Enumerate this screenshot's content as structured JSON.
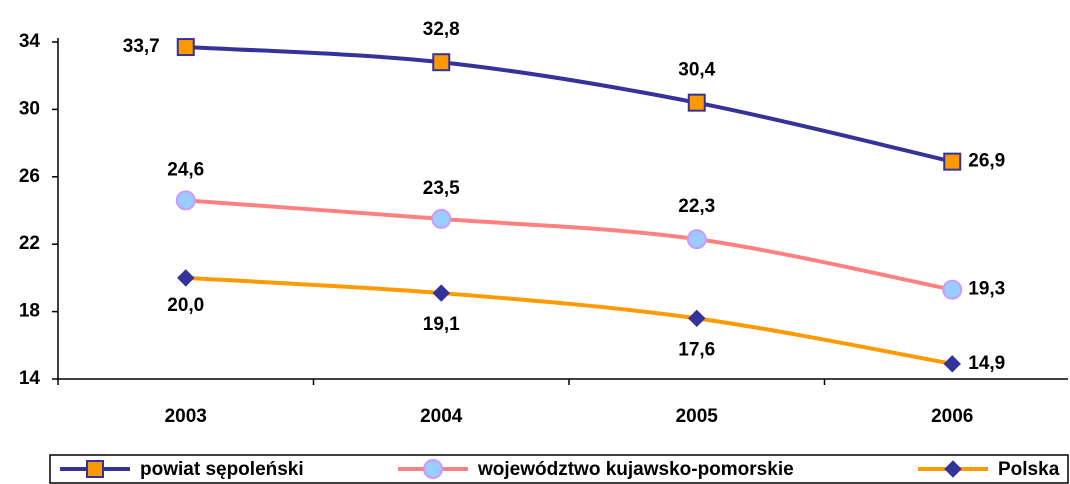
{
  "chart_data": {
    "type": "line",
    "categories": [
      "2003",
      "2004",
      "2005",
      "2006"
    ],
    "series": [
      {
        "name": "powiat sępoleński",
        "color": "#333399",
        "marker": "square",
        "marker_color": "#ff9900",
        "values": [
          33.7,
          32.8,
          30.4,
          26.9
        ],
        "value_labels": [
          "33,7",
          "32,8",
          "30,4",
          "26,9"
        ]
      },
      {
        "name": "województwo kujawsko-pomorskie",
        "color": "#ff8080",
        "marker": "circle",
        "marker_color": "#99ccff",
        "values": [
          24.6,
          23.5,
          22.3,
          19.3
        ],
        "value_labels": [
          "24,6",
          "23,5",
          "22,3",
          "19,3"
        ]
      },
      {
        "name": "Polska",
        "color": "#ff9900",
        "marker": "diamond",
        "marker_color": "#333399",
        "values": [
          20.0,
          19.1,
          17.6,
          14.9
        ],
        "value_labels": [
          "20,0",
          "19,1",
          "17,6",
          "14,9"
        ]
      }
    ],
    "ylim": [
      14,
      34
    ],
    "yticks": [
      14,
      18,
      22,
      26,
      30,
      34
    ],
    "legend": "bottom"
  }
}
